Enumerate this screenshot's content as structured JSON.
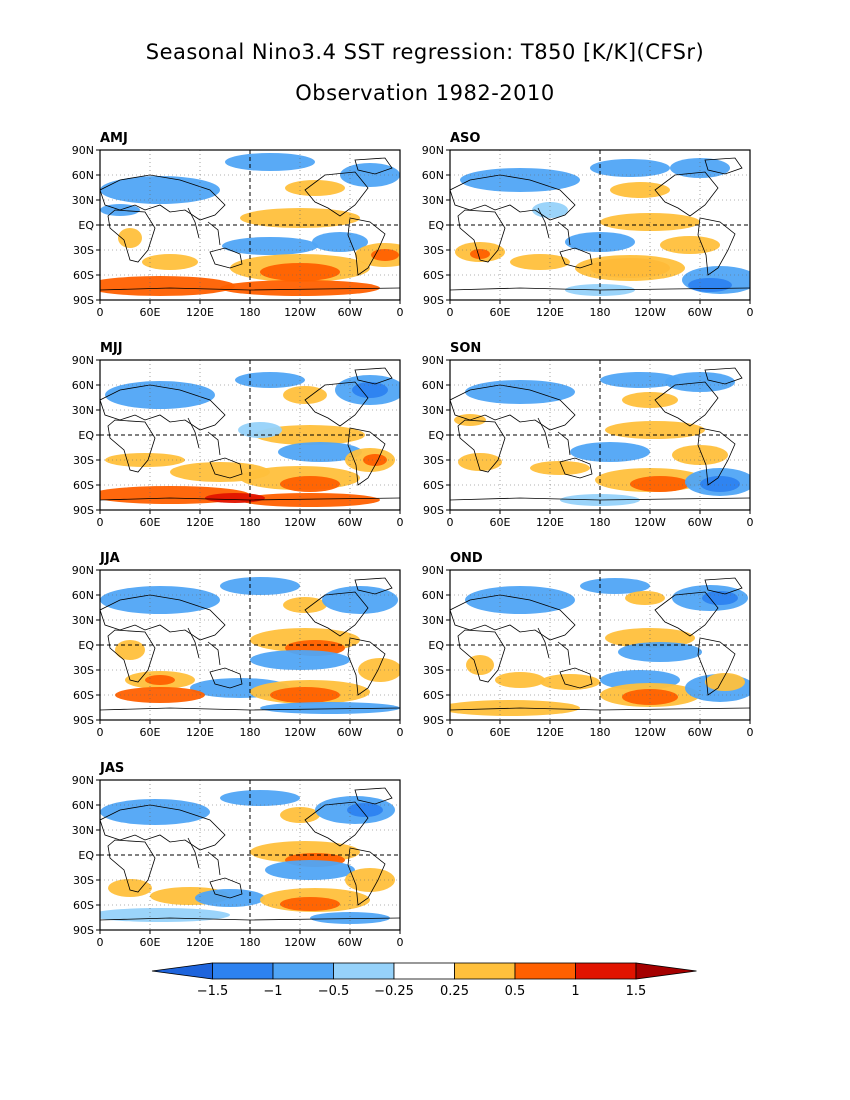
{
  "header": {
    "title": "Seasonal Nino3.4 SST regression: T850 [K/K](CFSr)",
    "subtitle": "Observation 1982-2010"
  },
  "map_axes": {
    "lon_labels": [
      "0",
      "60E",
      "120E",
      "180",
      "120W",
      "60W",
      "0"
    ],
    "lat_labels": [
      "90N",
      "60N",
      "30N",
      "EQ",
      "30S",
      "60S",
      "90S"
    ]
  },
  "panels": [
    {
      "label": "AMJ",
      "pattern": "amj"
    },
    {
      "label": "ASO",
      "pattern": "aso"
    },
    {
      "label": "MJJ",
      "pattern": "mjj"
    },
    {
      "label": "SON",
      "pattern": "son"
    },
    {
      "label": "JJA",
      "pattern": "jja"
    },
    {
      "label": "OND",
      "pattern": "ond"
    },
    {
      "label": "JAS",
      "pattern": "jas"
    }
  ],
  "colorbar": {
    "labels": [
      "-1.5",
      "-1",
      "-0.5",
      "-0.25",
      "0.25",
      "0.5",
      "1",
      "1.5"
    ],
    "colors": [
      "#1e64dc",
      "#2d82f0",
      "#50a5f5",
      "#96d2fa",
      "#ffffff",
      "#ffc03c",
      "#ff6000",
      "#e11400",
      "#a50000"
    ]
  }
}
